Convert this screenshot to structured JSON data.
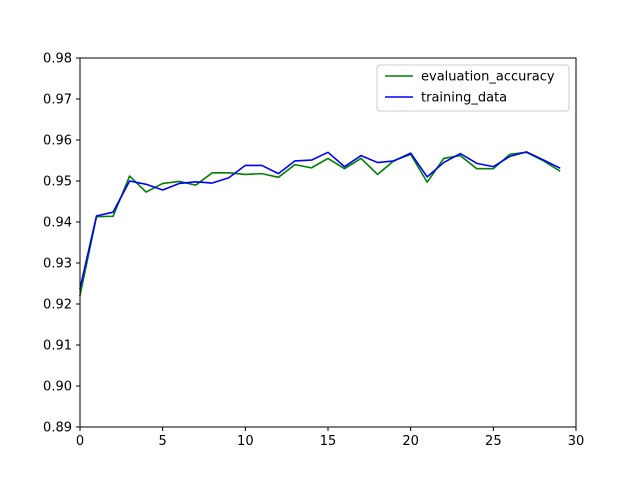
{
  "chart_data": {
    "type": "line",
    "title": "",
    "xlabel": "",
    "ylabel": "",
    "xlim": [
      0,
      30
    ],
    "ylim": [
      0.89,
      0.98
    ],
    "xticks": [
      "0",
      "5",
      "10",
      "15",
      "20",
      "25",
      "30"
    ],
    "yticks": [
      "0.89",
      "0.90",
      "0.91",
      "0.92",
      "0.93",
      "0.94",
      "0.95",
      "0.96",
      "0.97",
      "0.98"
    ],
    "grid": false,
    "legend_position": "upper right",
    "x": [
      0,
      1,
      2,
      3,
      4,
      5,
      6,
      7,
      8,
      9,
      10,
      11,
      12,
      13,
      14,
      15,
      16,
      17,
      18,
      19,
      20,
      21,
      22,
      23,
      24,
      25,
      26,
      27,
      28,
      29
    ],
    "series": [
      {
        "name": "evaluation_accuracy",
        "color": "#008000",
        "values": [
          0.9221,
          0.9413,
          0.9414,
          0.9512,
          0.9473,
          0.9494,
          0.9499,
          0.949,
          0.952,
          0.952,
          0.9516,
          0.9518,
          0.9509,
          0.954,
          0.9532,
          0.9555,
          0.953,
          0.9555,
          0.9516,
          0.955,
          0.9565,
          0.9497,
          0.9555,
          0.9562,
          0.953,
          0.953,
          0.9565,
          0.957,
          0.955,
          0.9525
        ]
      },
      {
        "name": "training_data",
        "color": "#0000ff",
        "values": [
          0.9238,
          0.9415,
          0.9424,
          0.95,
          0.9492,
          0.9478,
          0.9494,
          0.9498,
          0.9495,
          0.9508,
          0.9538,
          0.9538,
          0.9518,
          0.9549,
          0.9551,
          0.957,
          0.9535,
          0.9562,
          0.9545,
          0.9549,
          0.9568,
          0.951,
          0.9545,
          0.9567,
          0.9543,
          0.9535,
          0.956,
          0.9571,
          0.9552,
          0.9532
        ]
      }
    ]
  }
}
